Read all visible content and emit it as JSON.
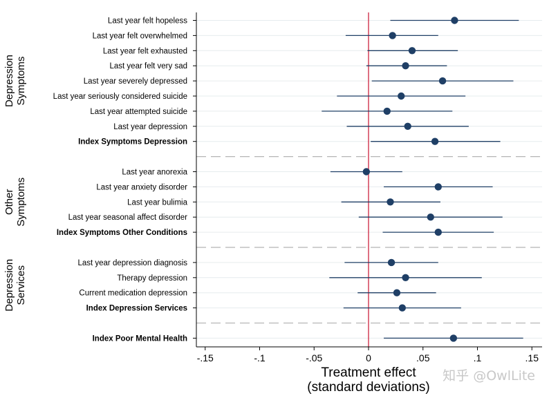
{
  "chart_data": {
    "type": "coefficient-plot",
    "xlabel_line1": "Treatment effect",
    "xlabel_line2": "(standard deviations)",
    "xlim": [
      -0.16,
      0.16
    ],
    "xticks": [
      -0.15,
      -0.1,
      -0.05,
      0,
      0.05,
      0.1,
      0.15
    ],
    "xtick_labels": [
      "-.15",
      "-.1",
      "-.05",
      "0",
      ".05",
      ".1",
      ".15"
    ],
    "reference_line": 0,
    "reference_color": "#c8102e",
    "point_color": "#1f3f66",
    "groups": [
      {
        "title_line1": "Depression",
        "title_line2": "Symptoms",
        "rows": [
          {
            "label": "Last year felt hopeless",
            "estimate": 0.079,
            "ci_low": 0.02,
            "ci_high": 0.138,
            "bold": false
          },
          {
            "label": "Last year felt overwhelmed",
            "estimate": 0.022,
            "ci_low": -0.021,
            "ci_high": 0.064,
            "bold": false
          },
          {
            "label": "Last year felt exhausted",
            "estimate": 0.04,
            "ci_low": -0.001,
            "ci_high": 0.082,
            "bold": false
          },
          {
            "label": "Last year felt very sad",
            "estimate": 0.034,
            "ci_low": -0.002,
            "ci_high": 0.072,
            "bold": false
          },
          {
            "label": "Last year severely depressed",
            "estimate": 0.068,
            "ci_low": 0.003,
            "ci_high": 0.133,
            "bold": false
          },
          {
            "label": "Last year seriously considered suicide",
            "estimate": 0.03,
            "ci_low": -0.029,
            "ci_high": 0.089,
            "bold": false
          },
          {
            "label": "Last year attempted suicide",
            "estimate": 0.017,
            "ci_low": -0.043,
            "ci_high": 0.077,
            "bold": false
          },
          {
            "label": "Last year depression",
            "estimate": 0.036,
            "ci_low": -0.02,
            "ci_high": 0.092,
            "bold": false
          },
          {
            "label": "Index Symptoms Depression",
            "estimate": 0.061,
            "ci_low": 0.002,
            "ci_high": 0.121,
            "bold": true
          }
        ]
      },
      {
        "title_line1": "Other",
        "title_line2": "Symptoms",
        "rows": [
          {
            "label": "Last year anorexia",
            "estimate": -0.002,
            "ci_low": -0.035,
            "ci_high": 0.031,
            "bold": false
          },
          {
            "label": "Last year anxiety disorder",
            "estimate": 0.064,
            "ci_low": 0.014,
            "ci_high": 0.114,
            "bold": false
          },
          {
            "label": "Last year bulimia",
            "estimate": 0.02,
            "ci_low": -0.025,
            "ci_high": 0.066,
            "bold": false
          },
          {
            "label": "Last year seasonal affect disorder",
            "estimate": 0.057,
            "ci_low": -0.009,
            "ci_high": 0.123,
            "bold": false
          },
          {
            "label": "Index Symptoms Other Conditions",
            "estimate": 0.064,
            "ci_low": 0.013,
            "ci_high": 0.115,
            "bold": true
          }
        ]
      },
      {
        "title_line1": "Depression",
        "title_line2": "Services",
        "rows": [
          {
            "label": "Last year depression diagnosis",
            "estimate": 0.021,
            "ci_low": -0.022,
            "ci_high": 0.064,
            "bold": false
          },
          {
            "label": "Therapy depression",
            "estimate": 0.034,
            "ci_low": -0.036,
            "ci_high": 0.104,
            "bold": false
          },
          {
            "label": "Current medication depression",
            "estimate": 0.026,
            "ci_low": -0.01,
            "ci_high": 0.062,
            "bold": false
          },
          {
            "label": "Index Depression Services",
            "estimate": 0.031,
            "ci_low": -0.023,
            "ci_high": 0.085,
            "bold": true
          }
        ]
      },
      {
        "title_line1": "",
        "title_line2": "",
        "rows": [
          {
            "label": "Index Poor Mental Health",
            "estimate": 0.078,
            "ci_low": 0.014,
            "ci_high": 0.142,
            "bold": true
          }
        ]
      }
    ]
  },
  "watermark": "知乎 @OwlLite"
}
